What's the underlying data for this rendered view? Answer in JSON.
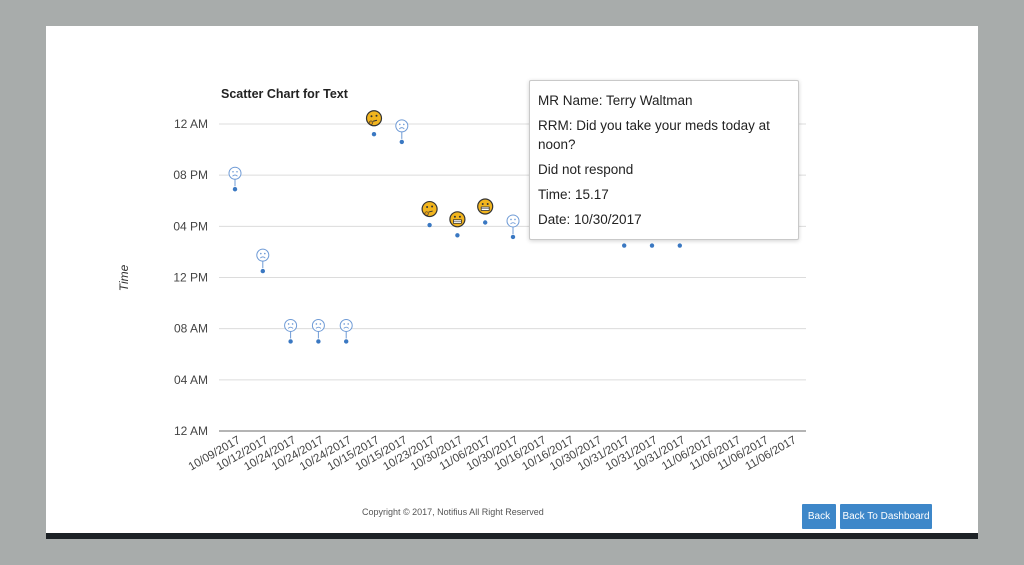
{
  "chart_data": {
    "type": "scatter",
    "title": "Scatter Chart for Text",
    "xlabel": "",
    "ylabel": "Time",
    "y_unit": "hours",
    "ylim": [
      0,
      24
    ],
    "y_ticks": [
      {
        "v": 24,
        "label": "12 AM"
      },
      {
        "v": 20,
        "label": "08 PM"
      },
      {
        "v": 16,
        "label": "04 PM"
      },
      {
        "v": 12,
        "label": "12 PM"
      },
      {
        "v": 8,
        "label": "08 AM"
      },
      {
        "v": 4,
        "label": "04 AM"
      },
      {
        "v": 0,
        "label": "12 AM"
      }
    ],
    "categories": [
      "10/09/2017",
      "10/12/2017",
      "10/24/2017",
      "10/24/2017",
      "10/24/2017",
      "10/15/2017",
      "10/15/2017",
      "10/23/2017",
      "10/30/2017",
      "11/06/2017",
      "10/30/2017",
      "10/16/2017",
      "10/16/2017",
      "10/30/2017",
      "10/31/2017",
      "10/31/2017",
      "10/31/2017",
      "11/06/2017",
      "11/06/2017",
      "11/06/2017",
      "11/06/2017"
    ],
    "points": [
      {
        "x": 0,
        "y": 18.9,
        "marker": "sad"
      },
      {
        "x": 1,
        "y": 12.5,
        "marker": "sad"
      },
      {
        "x": 2,
        "y": 7.0,
        "marker": "sad"
      },
      {
        "x": 3,
        "y": 7.0,
        "marker": "sad"
      },
      {
        "x": 4,
        "y": 7.0,
        "marker": "sad"
      },
      {
        "x": 5,
        "y": 23.2,
        "marker": "thinking"
      },
      {
        "x": 6,
        "y": 22.6,
        "marker": "sad"
      },
      {
        "x": 7,
        "y": 16.1,
        "marker": "thinking"
      },
      {
        "x": 8,
        "y": 15.3,
        "marker": "grimace"
      },
      {
        "x": 9,
        "y": 16.3,
        "marker": "grimace"
      },
      {
        "x": 10,
        "y": 15.17,
        "marker": "sad"
      },
      {
        "x": 14,
        "y": 14.5,
        "marker": "none"
      },
      {
        "x": 15,
        "y": 14.5,
        "marker": "none"
      },
      {
        "x": 16,
        "y": 14.5,
        "marker": "none"
      }
    ]
  },
  "tooltip": {
    "mr_name": "MR Name: Terry Waltman",
    "rrm": "RRM: Did you take your meds today at noon?",
    "response": "Did not respond",
    "time": "Time: 15.17",
    "date": "Date: 10/30/2017"
  },
  "footer": {
    "copyright": "Copyright © 2017, Notifius All Right Reserved",
    "back_label": "Back",
    "dashboard_label": "Back To Dashboard"
  },
  "colors": {
    "point": "#3a78c2",
    "sad_face": "#6f9bd6",
    "emoji_fill": "#f2b51e",
    "grid": "#dcdcdc",
    "button": "#3d87c9"
  }
}
